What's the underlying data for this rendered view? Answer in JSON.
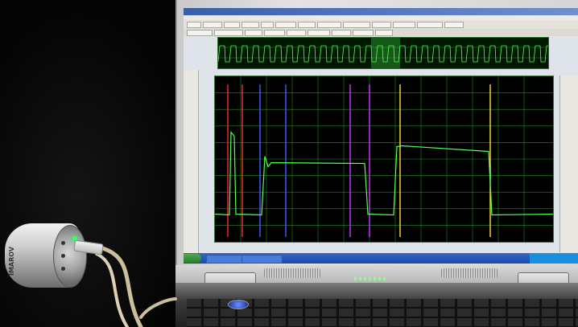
{
  "scene": {
    "description_labels": {
      "device_label": "IMAROV",
      "app_window_title": "",
      "tabs": [
        "",
        "",
        ""
      ]
    },
    "colors": {
      "trace": "#55ff55",
      "grid": "#1f8f1f",
      "cursor_red": "#ff2a2a",
      "cursor_blue": "#4060ff",
      "cursor_magenta": "#d23cff",
      "cursor_yellow": "#ffe23c",
      "plot_bg": "#000000",
      "led_green": "#3cff6a"
    },
    "icons": {
      "window_buttons": "window-controls-icon",
      "start_button": "start-icon",
      "power_button": "power-icon"
    }
  }
}
